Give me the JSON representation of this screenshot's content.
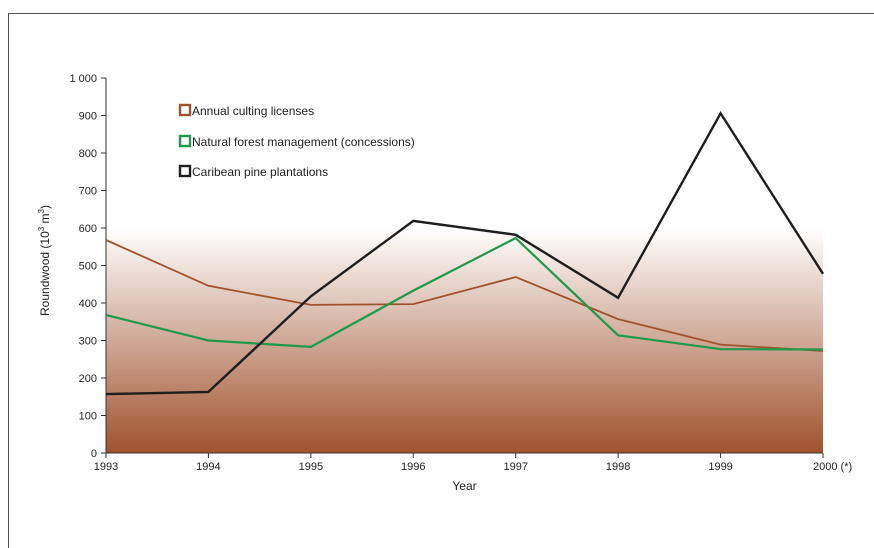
{
  "chart_data": {
    "type": "line",
    "xlabel": "Year",
    "ylabel": "Roundwood (10",
    "ylabel_sup": "3",
    "ylabel_mid": " m",
    "ylabel_sup2": "3",
    "ylabel_end": ")",
    "categories": [
      "1993",
      "1994",
      "1995",
      "1996",
      "1997",
      "1998",
      "1999",
      "2000 (*)"
    ],
    "ylim": [
      0,
      1000
    ],
    "yticks": [
      0,
      100,
      200,
      300,
      400,
      500,
      600,
      700,
      800,
      900,
      1000
    ],
    "ytick_labels": [
      "0",
      "100",
      "200",
      "300",
      "400",
      "500",
      "600",
      "700",
      "800",
      "900",
      "1 000"
    ],
    "grid": false,
    "legend_position": "top-left",
    "series": [
      {
        "name": "Annual culting licenses",
        "color": "#a0522d",
        "values": [
          568,
          446,
          395,
          397,
          469,
          357,
          289,
          272
        ]
      },
      {
        "name": "Natural forest management (concessions)",
        "color": "#1f9a4a",
        "values": [
          368,
          300,
          283,
          433,
          573,
          314,
          277,
          276
        ]
      },
      {
        "name": "Caribean pine plantations",
        "color": "#1e1e1e",
        "values": [
          157,
          163,
          418,
          619,
          582,
          414,
          906,
          478
        ]
      }
    ],
    "background_gradient": {
      "top_color": "#ffffff",
      "bottom_color": "#a0522d"
    }
  }
}
